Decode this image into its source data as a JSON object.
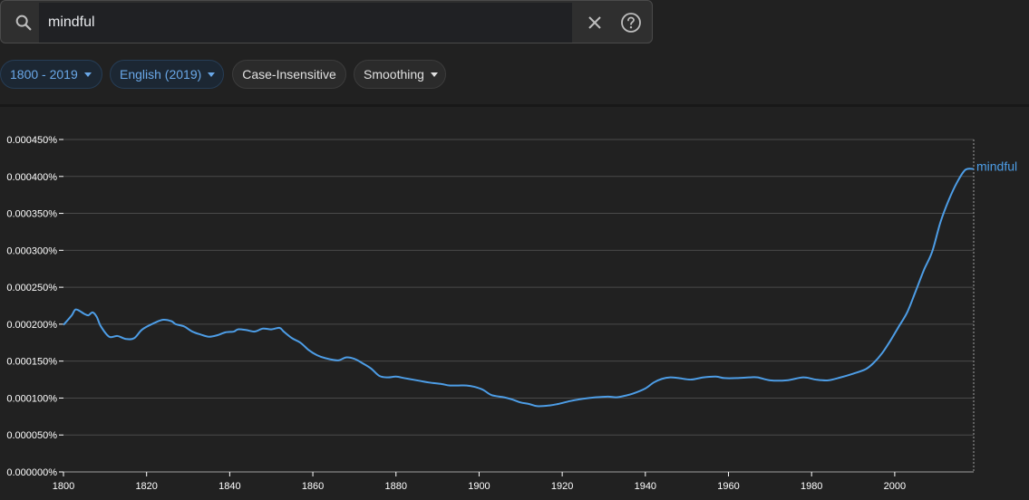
{
  "search": {
    "query": "mindful"
  },
  "icons": {
    "search": "search-icon",
    "clear": "close-icon",
    "help": "help-icon",
    "dropdown": "caret-down-icon"
  },
  "filters": {
    "year_range": "1800 - 2019",
    "corpus": "English (2019)",
    "case": "Case-Insensitive",
    "smoothing": "Smoothing"
  },
  "colors": {
    "accent": "#4d9de6",
    "background": "#212121"
  },
  "chart_data": {
    "type": "line",
    "xlim": [
      1800,
      2019
    ],
    "ylim": [
      0,
      0.00045
    ],
    "x_ticks": [
      1800,
      1820,
      1840,
      1860,
      1880,
      1900,
      1920,
      1940,
      1960,
      1980,
      2000
    ],
    "y_ticks": [
      {
        "value": 0.0,
        "label": "0.000000%"
      },
      {
        "value": 5e-05,
        "label": "0.000050%"
      },
      {
        "value": 0.0001,
        "label": "0.000100%"
      },
      {
        "value": 0.00015,
        "label": "0.000150%"
      },
      {
        "value": 0.0002,
        "label": "0.000200%"
      },
      {
        "value": 0.00025,
        "label": "0.000250%"
      },
      {
        "value": 0.0003,
        "label": "0.000300%"
      },
      {
        "value": 0.00035,
        "label": "0.000350%"
      },
      {
        "value": 0.0004,
        "label": "0.000400%"
      },
      {
        "value": 0.00045,
        "label": "0.000450%"
      }
    ],
    "grid": true,
    "series": [
      {
        "name": "mindful",
        "color": "#4d9de6",
        "points": [
          [
            1800,
            0.000199
          ],
          [
            1802,
            0.000212
          ],
          [
            1803,
            0.00022
          ],
          [
            1805,
            0.000214
          ],
          [
            1806,
            0.000212
          ],
          [
            1807,
            0.000216
          ],
          [
            1808,
            0.00021
          ],
          [
            1809,
            0.000197
          ],
          [
            1811,
            0.000183
          ],
          [
            1813,
            0.000184
          ],
          [
            1815,
            0.00018
          ],
          [
            1817,
            0.000181
          ],
          [
            1819,
            0.000193
          ],
          [
            1822,
            0.000202
          ],
          [
            1824,
            0.000206
          ],
          [
            1826,
            0.000204
          ],
          [
            1827,
            0.0002
          ],
          [
            1829,
            0.000197
          ],
          [
            1831,
            0.00019
          ],
          [
            1833,
            0.000186
          ],
          [
            1835,
            0.000183
          ],
          [
            1837,
            0.000185
          ],
          [
            1839,
            0.000189
          ],
          [
            1841,
            0.00019
          ],
          [
            1842,
            0.000193
          ],
          [
            1844,
            0.000192
          ],
          [
            1846,
            0.00019
          ],
          [
            1848,
            0.000194
          ],
          [
            1850,
            0.000193
          ],
          [
            1852,
            0.000195
          ],
          [
            1853,
            0.00019
          ],
          [
            1855,
            0.000181
          ],
          [
            1857,
            0.000175
          ],
          [
            1859,
            0.000165
          ],
          [
            1861,
            0.000158
          ],
          [
            1863,
            0.000154
          ],
          [
            1866,
            0.000151
          ],
          [
            1868,
            0.000155
          ],
          [
            1870,
            0.000153
          ],
          [
            1872,
            0.000147
          ],
          [
            1874,
            0.00014
          ],
          [
            1876,
            0.00013
          ],
          [
            1878,
            0.000128
          ],
          [
            1880,
            0.000129
          ],
          [
            1882,
            0.000127
          ],
          [
            1884,
            0.000125
          ],
          [
            1886,
            0.000123
          ],
          [
            1888,
            0.000121
          ],
          [
            1891,
            0.000119
          ],
          [
            1893,
            0.000117
          ],
          [
            1897,
            0.000117
          ],
          [
            1899,
            0.000115
          ],
          [
            1901,
            0.000111
          ],
          [
            1903,
            0.000104
          ],
          [
            1906,
            0.000101
          ],
          [
            1908,
            9.8e-05
          ],
          [
            1910,
            9.4e-05
          ],
          [
            1912,
            9.2e-05
          ],
          [
            1914,
            8.9e-05
          ],
          [
            1917,
            9e-05
          ],
          [
            1919,
            9.2e-05
          ],
          [
            1922,
            9.6e-05
          ],
          [
            1925,
            9.9e-05
          ],
          [
            1928,
            0.000101
          ],
          [
            1931,
            0.000102
          ],
          [
            1933,
            0.000101
          ],
          [
            1935,
            0.000103
          ],
          [
            1937,
            0.000106
          ],
          [
            1940,
            0.000113
          ],
          [
            1942,
            0.000121
          ],
          [
            1944,
            0.000126
          ],
          [
            1946,
            0.000128
          ],
          [
            1948,
            0.000127
          ],
          [
            1951,
            0.000125
          ],
          [
            1954,
            0.000128
          ],
          [
            1957,
            0.000129
          ],
          [
            1959,
            0.000127
          ],
          [
            1962,
            0.000127
          ],
          [
            1965,
            0.000128
          ],
          [
            1967,
            0.000128
          ],
          [
            1970,
            0.000124
          ],
          [
            1974,
            0.000124
          ],
          [
            1978,
            0.000128
          ],
          [
            1981,
            0.000125
          ],
          [
            1984,
            0.000124
          ],
          [
            1987,
            0.000128
          ],
          [
            1990,
            0.000133
          ],
          [
            1993,
            0.000139
          ],
          [
            1995,
            0.000148
          ],
          [
            1997,
            0.000161
          ],
          [
            1999,
            0.000178
          ],
          [
            2001,
            0.000197
          ],
          [
            2003,
            0.000216
          ],
          [
            2005,
            0.000244
          ],
          [
            2007,
            0.000273
          ],
          [
            2009,
            0.000298
          ],
          [
            2011,
            0.000338
          ],
          [
            2013,
            0.000368
          ],
          [
            2015,
            0.000392
          ],
          [
            2017,
            0.000409
          ],
          [
            2019,
            0.00041
          ]
        ]
      }
    ]
  }
}
